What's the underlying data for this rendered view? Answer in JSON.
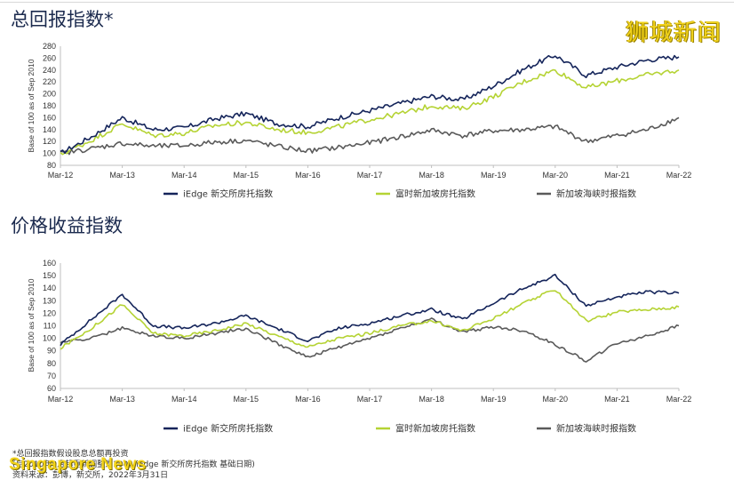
{
  "watermark": "狮城新闻",
  "brand": "Singapore News",
  "footnotes": [
    "*总回报指数假设股息总额再投资",
    "(自2010年9月起重新调整为100，iEdge 新交所房托指数 基础日期)",
    "资料来源：彭博，新交所，2022年3月31日"
  ],
  "colors": {
    "iedge": "#14245a",
    "ft_sreit": "#b5d334",
    "ft_st": "#5a5a5a"
  },
  "chart_data": [
    {
      "type": "line",
      "title": "总回报指数*",
      "ylabel": "Base of 100 as of Sep 2010",
      "ylim": [
        80,
        280
      ],
      "yticks": [
        80,
        100,
        120,
        140,
        160,
        180,
        200,
        220,
        240,
        260,
        280
      ],
      "x": [
        "Mar-12",
        "Sep-12",
        "Mar-13",
        "Sep-13",
        "Mar-14",
        "Sep-14",
        "Mar-15",
        "Sep-15",
        "Mar-16",
        "Sep-16",
        "Mar-17",
        "Sep-17",
        "Mar-18",
        "Sep-18",
        "Mar-19",
        "Sep-19",
        "Mar-20",
        "Sep-20",
        "Mar-21",
        "Sep-21",
        "Mar-22"
      ],
      "xticks": [
        "Mar-12",
        "Mar-13",
        "Mar-14",
        "Mar-15",
        "Mar-16",
        "Mar-17",
        "Mar-18",
        "Mar-19",
        "Mar-20",
        "Mar-21",
        "Mar-22"
      ],
      "series": [
        {
          "name": "iEdge 新交所房托指数",
          "values": [
            100,
            128,
            160,
            140,
            143,
            158,
            167,
            150,
            145,
            160,
            172,
            184,
            196,
            190,
            213,
            242,
            265,
            231,
            245,
            257,
            262
          ]
        },
        {
          "name": "富时新加坡房托指数",
          "values": [
            98,
            122,
            150,
            130,
            134,
            147,
            152,
            140,
            135,
            145,
            157,
            167,
            180,
            175,
            195,
            221,
            240,
            210,
            222,
            232,
            240
          ]
        },
        {
          "name": "新加坡海峡时报指数",
          "values": [
            100,
            108,
            117,
            112,
            113,
            119,
            122,
            112,
            104,
            110,
            118,
            128,
            139,
            130,
            138,
            140,
            145,
            120,
            130,
            140,
            160
          ]
        }
      ]
    },
    {
      "type": "line",
      "title": "价格收益指数",
      "ylabel": "Base of 100 as of Sep 2010",
      "ylim": [
        60,
        160
      ],
      "yticks": [
        60,
        70,
        80,
        90,
        100,
        110,
        120,
        130,
        140,
        150,
        160
      ],
      "x": [
        "Mar-12",
        "Sep-12",
        "Mar-13",
        "Sep-13",
        "Mar-14",
        "Sep-14",
        "Mar-15",
        "Sep-15",
        "Mar-16",
        "Sep-16",
        "Mar-17",
        "Sep-17",
        "Mar-18",
        "Sep-18",
        "Mar-19",
        "Sep-19",
        "Mar-20",
        "Sep-20",
        "Mar-21",
        "Sep-21",
        "Mar-22"
      ],
      "xticks": [
        "Mar-12",
        "Mar-13",
        "Mar-14",
        "Mar-15",
        "Mar-16",
        "Mar-17",
        "Mar-18",
        "Mar-19",
        "Mar-20",
        "Mar-21",
        "Mar-22"
      ],
      "series": [
        {
          "name": "iEdge 新交所房托指数",
          "values": [
            95,
            115,
            135,
            110,
            108,
            112,
            118,
            108,
            98,
            108,
            112,
            118,
            123,
            115,
            128,
            140,
            150,
            126,
            133,
            137,
            136
          ]
        },
        {
          "name": "富时新加坡房托指数",
          "values": [
            92,
            108,
            127,
            104,
            102,
            106,
            112,
            102,
            93,
            100,
            104,
            110,
            114,
            106,
            116,
            128,
            139,
            114,
            121,
            123,
            125
          ]
        },
        {
          "name": "新加坡海峡时报指数",
          "values": [
            97,
            100,
            108,
            102,
            100,
            104,
            108,
            96,
            85,
            93,
            100,
            108,
            115,
            105,
            109,
            106,
            95,
            82,
            96,
            102,
            110
          ]
        }
      ]
    }
  ]
}
